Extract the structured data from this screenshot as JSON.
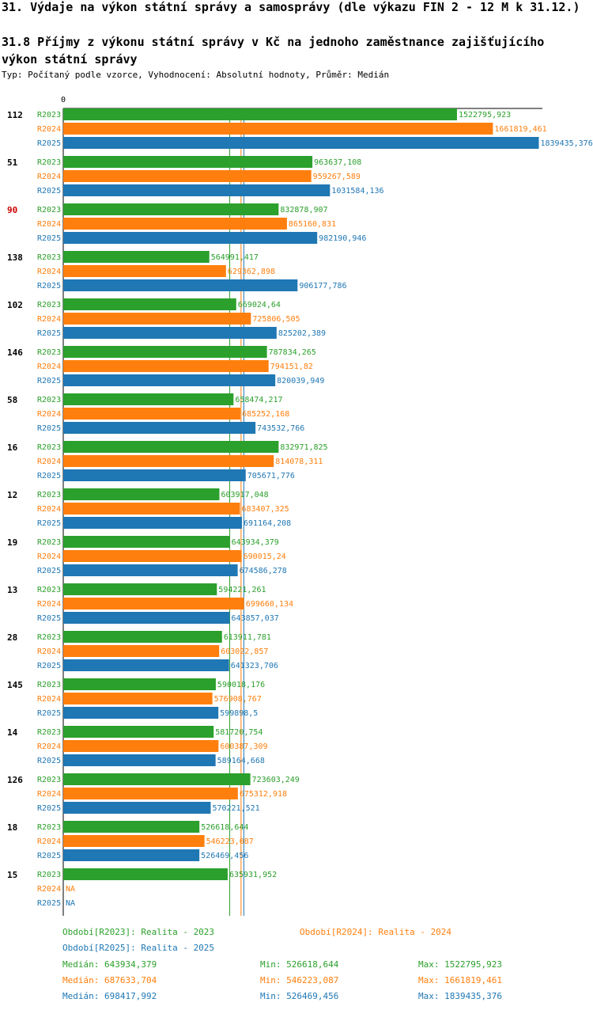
{
  "header": {
    "title": "31. Výdaje na výkon státní správy a samosprávy (dle výkazu FIN 2 - 12 M k 31.12.)",
    "subtitle": "31.8 Příjmy z výkonu státní správy v Kč na jednoho zaměstnance zajišťujícího výkon státní správy",
    "meta": "Typ: Počítaný podle vzorce, Vyhodnocení: Absolutní hodnoty, Průměr: Medián"
  },
  "colors": {
    "R2023": "#2ca02c",
    "R2024": "#ff7f0e",
    "R2025": "#1f77b4",
    "highlight": "#cc0000"
  },
  "chart_data": {
    "type": "bar",
    "orientation": "horizontal",
    "xlim": [
      0,
      1839435.376
    ],
    "axis_zero_label": "0",
    "series_names": [
      "R2023",
      "R2024",
      "R2025"
    ],
    "highlight_category": "90",
    "categories": [
      "112",
      "51",
      "90",
      "138",
      "102",
      "146",
      "58",
      "16",
      "12",
      "19",
      "13",
      "28",
      "145",
      "14",
      "126",
      "18",
      "15"
    ],
    "labels": [
      [
        "1522795,923",
        "1661819,461",
        "1839435,376"
      ],
      [
        "963637,108",
        "959267,589",
        "1031584,136"
      ],
      [
        "832878,907",
        "865160,831",
        "982190,946"
      ],
      [
        "564991,417",
        "629362,898",
        "906177,786"
      ],
      [
        "669024,64",
        "725806,505",
        "825202,389"
      ],
      [
        "787834,265",
        "794151,82",
        "820039,949"
      ],
      [
        "658474,217",
        "685252,168",
        "743532,766"
      ],
      [
        "832971,825",
        "814078,311",
        "705671,776"
      ],
      [
        "603917,048",
        "683407,325",
        "691164,208"
      ],
      [
        "643934,379",
        "690015,24",
        "674586,278"
      ],
      [
        "594221,261",
        "699660,134",
        "643857,037"
      ],
      [
        "613911,781",
        "603022,857",
        "641323,706"
      ],
      [
        "590018,176",
        "576908,767",
        "599898,5"
      ],
      [
        "581720,754",
        "600387,309",
        "589164,668"
      ],
      [
        "723603,249",
        "675312,918",
        "570221,521"
      ],
      [
        "526618,644",
        "546223,087",
        "526469,456"
      ],
      [
        "635931,952",
        "NA",
        "NA"
      ]
    ],
    "values": [
      [
        1522795.923,
        1661819.461,
        1839435.376
      ],
      [
        963637.108,
        959267.589,
        1031584.136
      ],
      [
        832878.907,
        865160.831,
        982190.946
      ],
      [
        564991.417,
        629362.898,
        906177.786
      ],
      [
        669024.64,
        725806.505,
        825202.389
      ],
      [
        787834.265,
        794151.82,
        820039.949
      ],
      [
        658474.217,
        685252.168,
        743532.766
      ],
      [
        832971.825,
        814078.311,
        705671.776
      ],
      [
        603917.048,
        683407.325,
        691164.208
      ],
      [
        643934.379,
        690015.24,
        674586.278
      ],
      [
        594221.261,
        699660.134,
        643857.037
      ],
      [
        613911.781,
        603022.857,
        641323.706
      ],
      [
        590018.176,
        576908.767,
        599898.5
      ],
      [
        581720.754,
        600387.309,
        589164.668
      ],
      [
        723603.249,
        675312.918,
        570221.521
      ],
      [
        526618.644,
        546223.087,
        526469.456
      ],
      [
        635931.952,
        null,
        null
      ]
    ],
    "medians": [
      643934.379,
      687633.704,
      698417.992
    ]
  },
  "legend": {
    "periods": [
      "Období[R2023]: Realita - 2023",
      "Období[R2024]: Realita - 2024",
      "Období[R2025]: Realita - 2025"
    ],
    "stats": [
      {
        "median": "Medián: 643934,379",
        "min": "Min: 526618,644",
        "max": "Max: 1522795,923"
      },
      {
        "median": "Medián: 687633,704",
        "min": "Min: 546223,087",
        "max": "Max: 1661819,461"
      },
      {
        "median": "Medián: 698417,992",
        "min": "Min: 526469,456",
        "max": "Max: 1839435,376"
      }
    ]
  }
}
